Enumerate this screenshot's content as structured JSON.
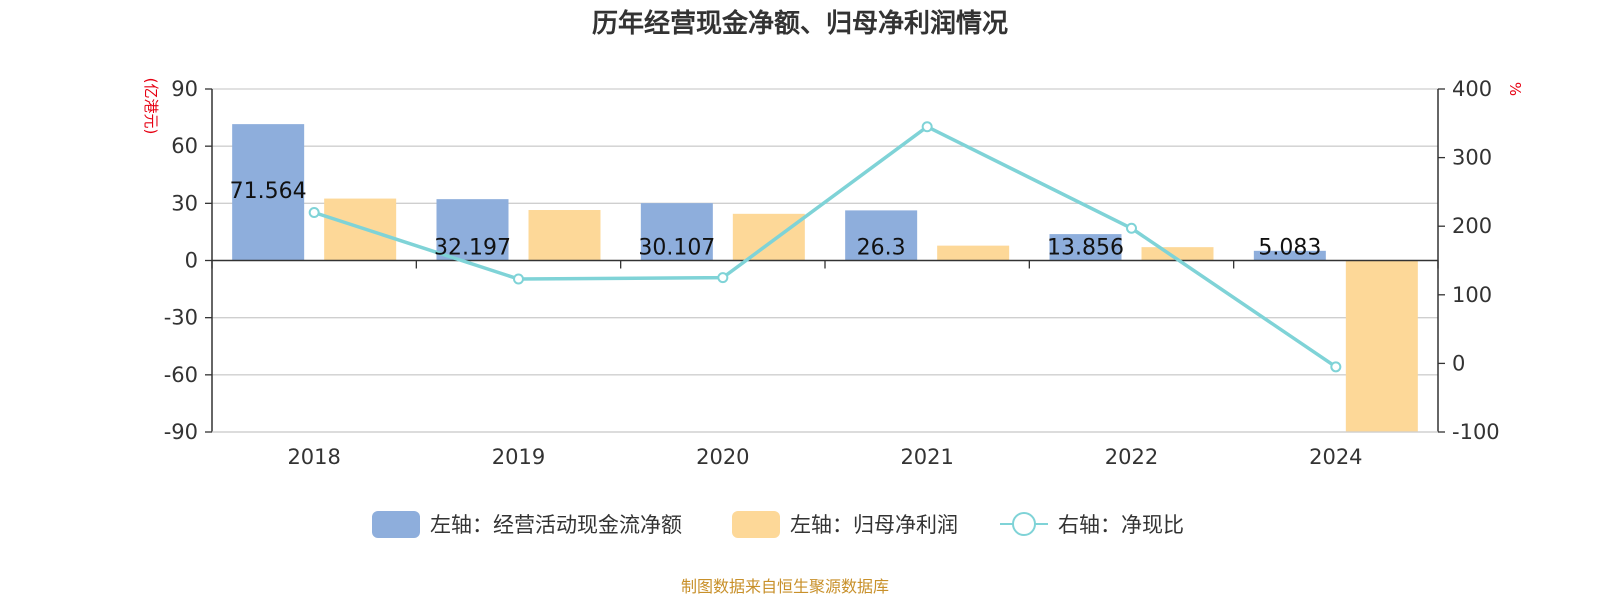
{
  "title": "历年经营现金净额、归母净利润情况",
  "source": "制图数据来自恒生聚源数据库",
  "colors": {
    "cash": "#8eaedc",
    "profit": "#fdd898",
    "ratio": "#7fd3d7",
    "unit": "#e60012",
    "source": "#c8902a"
  },
  "chart_data": {
    "type": "bar",
    "title": "历年经营现金净额、归母净利润情况",
    "categories": [
      "2018",
      "2019",
      "2020",
      "2021",
      "2022",
      "2024"
    ],
    "left_axis": {
      "unit": "(亿港元)",
      "ylim": [
        -90,
        90
      ],
      "ticks": [
        "90",
        "60",
        "30",
        "0",
        "-30",
        "-60",
        "-90"
      ]
    },
    "right_axis": {
      "unit": "%",
      "ylim": [
        -100,
        400
      ],
      "ticks": [
        "400",
        "300",
        "200",
        "100",
        "0",
        "-100"
      ]
    },
    "grid": true,
    "legend_position": "bottom",
    "series": [
      {
        "name": "左轴：经营活动现金流净额",
        "type": "bar",
        "axis": "left",
        "values": [
          71.564,
          32.197,
          30.107,
          26.3,
          13.856,
          5.083
        ],
        "labels": [
          "71.564",
          "32.197",
          "30.107",
          "26.3",
          "13.856",
          "5.083"
        ]
      },
      {
        "name": "左轴：归母净利润",
        "type": "bar",
        "axis": "left",
        "values": [
          32.5,
          26.5,
          24.5,
          7.8,
          7.0,
          -90
        ]
      },
      {
        "name": "右轴：净现比",
        "type": "line",
        "axis": "right",
        "values": [
          220,
          123,
          125,
          345,
          197,
          -5
        ]
      }
    ]
  }
}
